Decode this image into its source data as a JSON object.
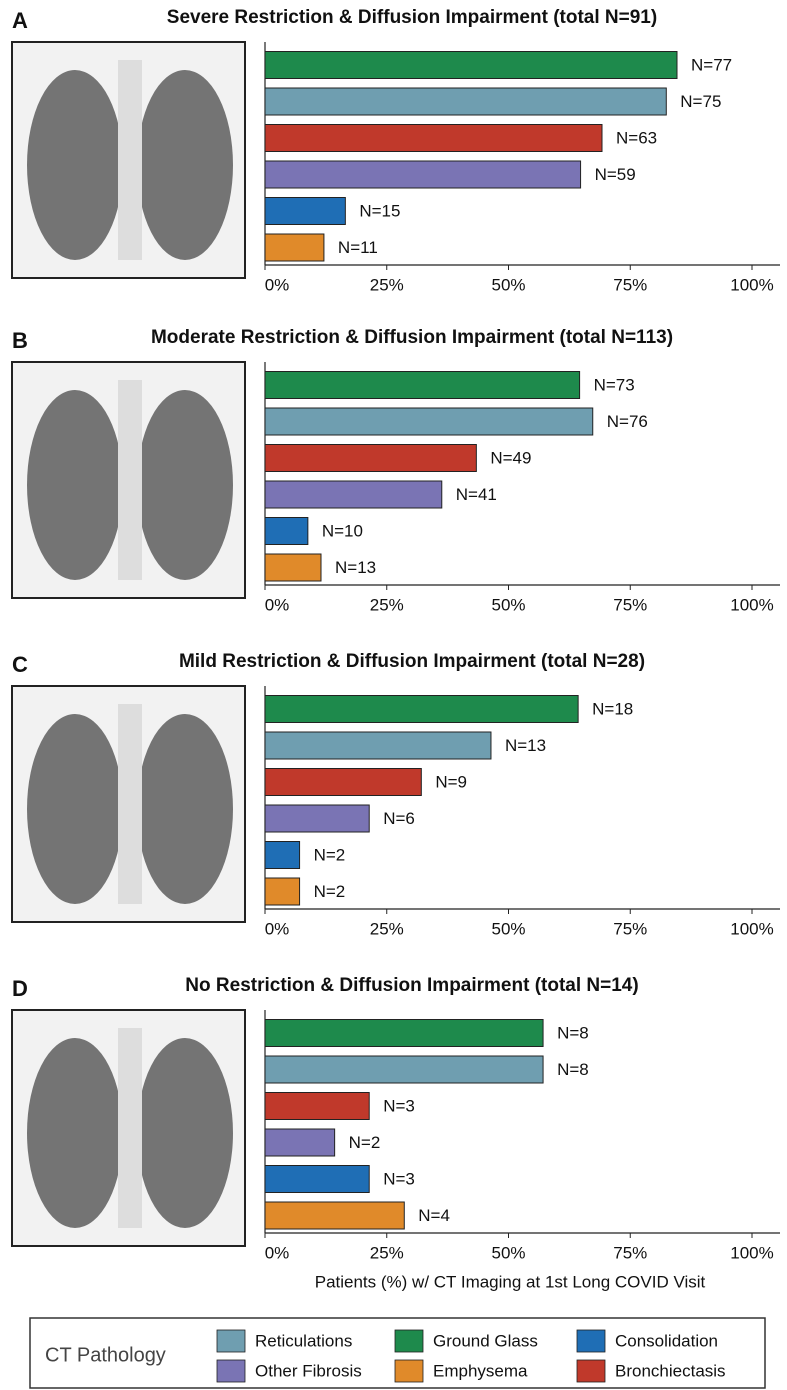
{
  "chart_data": [
    {
      "type": "bar",
      "orientation": "horizontal",
      "panel": "A",
      "title": "Severe Restriction & Diffusion Impairment (total N=91)",
      "values": [
        84.6,
        82.4,
        69.2,
        64.8,
        16.5,
        12.1
      ],
      "bar_labels": [
        "N=77",
        "N=75",
        "N=63",
        "N=59",
        "N=15",
        "N=11"
      ],
      "colors": [
        "#1e8a4c",
        "#6f9eb0",
        "#c0392b",
        "#7a74b4",
        "#1f6eb5",
        "#e08a2a"
      ],
      "xlim": [
        0,
        100
      ],
      "xticks": [
        {
          "value": 0,
          "label": "0%"
        },
        {
          "value": 25,
          "label": "25%"
        },
        {
          "value": 50,
          "label": "50%"
        },
        {
          "value": 75,
          "label": "75%"
        },
        {
          "value": 100,
          "label": "100%"
        }
      ]
    },
    {
      "type": "bar",
      "orientation": "horizontal",
      "panel": "B",
      "title": "Moderate Restriction & Diffusion Impairment (total N=113)",
      "values": [
        64.6,
        67.3,
        43.4,
        36.3,
        8.8,
        11.5
      ],
      "bar_labels": [
        "N=73",
        "N=76",
        "N=49",
        "N=41",
        "N=10",
        "N=13"
      ],
      "colors": [
        "#1e8a4c",
        "#6f9eb0",
        "#c0392b",
        "#7a74b4",
        "#1f6eb5",
        "#e08a2a"
      ],
      "xlim": [
        0,
        100
      ],
      "xticks": [
        {
          "value": 0,
          "label": "0%"
        },
        {
          "value": 25,
          "label": "25%"
        },
        {
          "value": 50,
          "label": "50%"
        },
        {
          "value": 75,
          "label": "75%"
        },
        {
          "value": 100,
          "label": "100%"
        }
      ]
    },
    {
      "type": "bar",
      "orientation": "horizontal",
      "panel": "C",
      "title": "Mild Restriction & Diffusion Impairment (total N=28)",
      "values": [
        64.3,
        46.4,
        32.1,
        21.4,
        7.1,
        7.1
      ],
      "bar_labels": [
        "N=18",
        "N=13",
        "N=9",
        "N=6",
        "N=2",
        "N=2"
      ],
      "colors": [
        "#1e8a4c",
        "#6f9eb0",
        "#c0392b",
        "#7a74b4",
        "#1f6eb5",
        "#e08a2a"
      ],
      "xlim": [
        0,
        100
      ],
      "xticks": [
        {
          "value": 0,
          "label": "0%"
        },
        {
          "value": 25,
          "label": "25%"
        },
        {
          "value": 50,
          "label": "50%"
        },
        {
          "value": 75,
          "label": "75%"
        },
        {
          "value": 100,
          "label": "100%"
        }
      ]
    },
    {
      "type": "bar",
      "orientation": "horizontal",
      "panel": "D",
      "title": "No Restriction & Diffusion Impairment (total N=14)",
      "values": [
        57.1,
        57.1,
        21.4,
        14.3,
        21.4,
        28.6
      ],
      "bar_labels": [
        "N=8",
        "N=8",
        "N=3",
        "N=2",
        "N=3",
        "N=4"
      ],
      "colors": [
        "#1e8a4c",
        "#6f9eb0",
        "#c0392b",
        "#7a74b4",
        "#1f6eb5",
        "#e08a2a"
      ],
      "xlim": [
        0,
        100
      ],
      "xticks": [
        {
          "value": 0,
          "label": "0%"
        },
        {
          "value": 25,
          "label": "25%"
        },
        {
          "value": 50,
          "label": "50%"
        },
        {
          "value": 75,
          "label": "75%"
        },
        {
          "value": 100,
          "label": "100%"
        }
      ]
    }
  ],
  "xlabel": "Patients (%) w/ CT Imaging at 1st Long COVID Visit",
  "legend": {
    "title": "CT Pathology",
    "items": [
      {
        "name": "Reticulations",
        "color": "#6f9eb0"
      },
      {
        "name": "Ground Glass",
        "color": "#1e8a4c"
      },
      {
        "name": "Consolidation",
        "color": "#1f6eb5"
      },
      {
        "name": "Other Fibrosis",
        "color": "#7a74b4"
      },
      {
        "name": "Emphysema",
        "color": "#e08a2a"
      },
      {
        "name": "Bronchiectasis",
        "color": "#c0392b"
      }
    ]
  }
}
